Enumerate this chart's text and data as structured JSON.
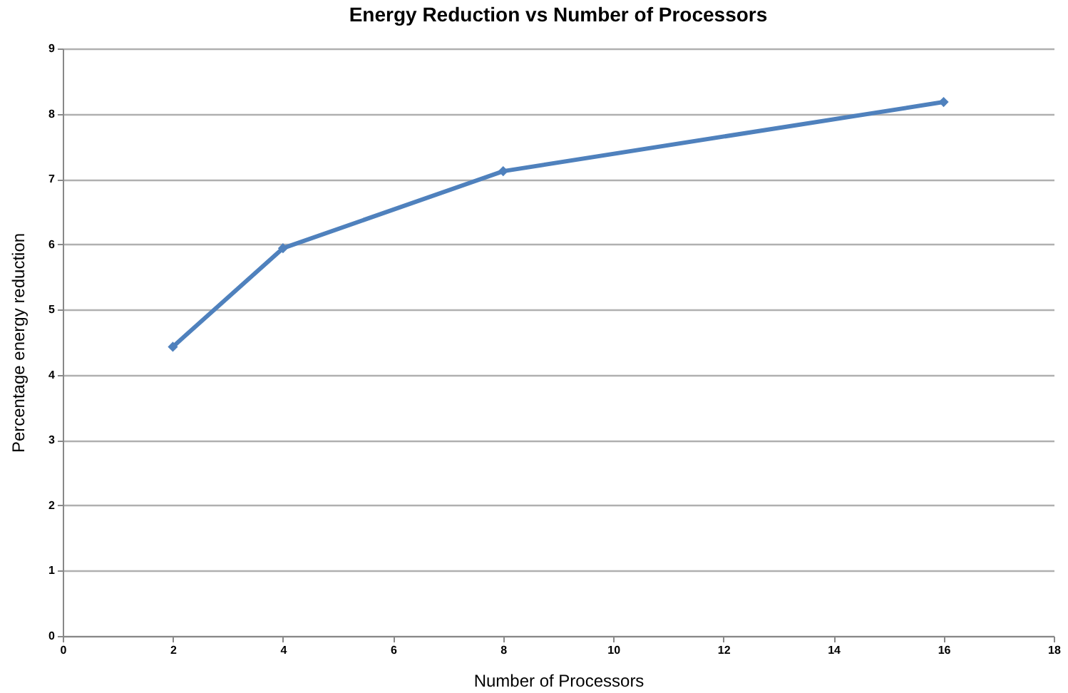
{
  "chart_data": {
    "type": "line",
    "title": "Energy Reduction vs Number of Processors",
    "xlabel": "Number of Processors",
    "ylabel": "Percentage energy reduction",
    "x": [
      2,
      4,
      8,
      16
    ],
    "series": [
      {
        "color": "#4f81bd",
        "values": [
          4.43,
          5.94,
          7.12,
          8.18
        ]
      }
    ],
    "xlim": [
      0,
      18
    ],
    "xticks": [
      0,
      2,
      4,
      6,
      8,
      10,
      12,
      14,
      16,
      18
    ],
    "ylim": [
      0,
      9
    ],
    "yticks": [
      0,
      1,
      2,
      3,
      4,
      5,
      6,
      7,
      8,
      9
    ],
    "grid": "y",
    "marker": "diamond",
    "line_style": "solid"
  }
}
